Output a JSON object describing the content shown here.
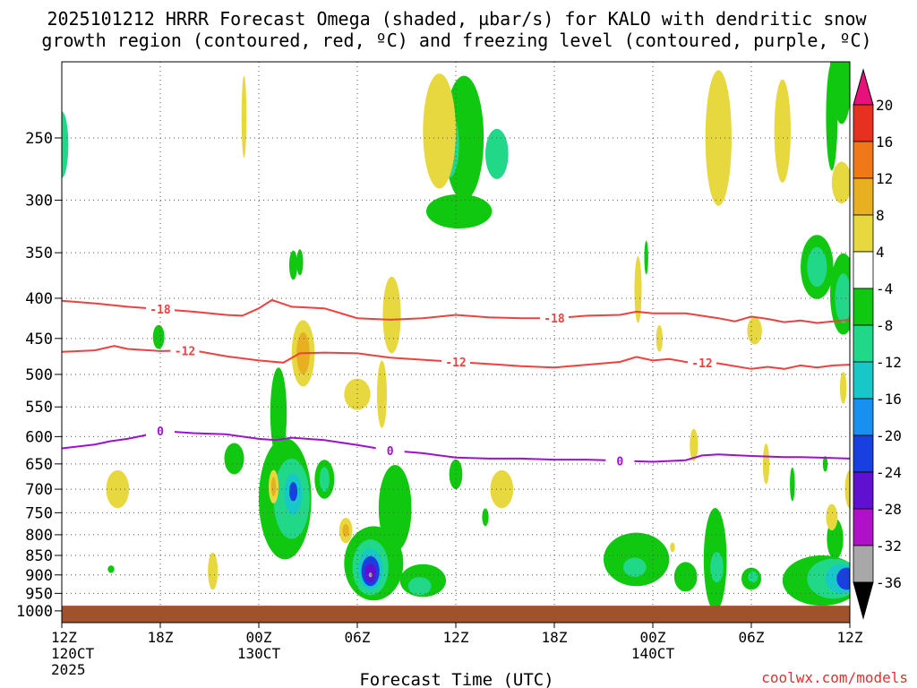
{
  "chart_data": {
    "type": "heatmap",
    "title_line1": "2025101212 HRRR Forecast Omega (shaded, µbar/s) for KALO with dendritic snow",
    "title_line2": "growth region (contoured, red, ºC) and freezing level (contoured, purple, ºC)",
    "xlabel": "Forecast Time (UTC)",
    "credit": "coolwx.com/models",
    "x_range_hours": [
      0,
      48
    ],
    "x_ticks": [
      {
        "hour": 0,
        "lines": [
          "12Z",
          "120CT",
          "2025"
        ]
      },
      {
        "hour": 6,
        "lines": [
          "18Z"
        ]
      },
      {
        "hour": 12,
        "lines": [
          "00Z",
          "130CT"
        ]
      },
      {
        "hour": 18,
        "lines": [
          "06Z"
        ]
      },
      {
        "hour": 24,
        "lines": [
          "12Z"
        ]
      },
      {
        "hour": 30,
        "lines": [
          "18Z"
        ]
      },
      {
        "hour": 36,
        "lines": [
          "00Z",
          "140CT"
        ]
      },
      {
        "hour": 42,
        "lines": [
          "06Z"
        ]
      },
      {
        "hour": 48,
        "lines": [
          "12Z"
        ]
      }
    ],
    "y_axis": "pressure (hPa), log scale",
    "y_range": [
      200,
      1035
    ],
    "y_ticks": [
      250,
      300,
      350,
      400,
      450,
      500,
      550,
      600,
      650,
      700,
      750,
      800,
      850,
      900,
      950,
      1000
    ],
    "colorbar": {
      "labels": [
        "20",
        "16",
        "12",
        "8",
        "4",
        "-4",
        "-8",
        "-12",
        "-16",
        "-20",
        "-24",
        "-28",
        "-32",
        "-36"
      ],
      "bins": [
        {
          "from": 20,
          "to": 24,
          "color": "#e8107a"
        },
        {
          "from": 16,
          "to": 20,
          "color": "#e83020"
        },
        {
          "from": 12,
          "to": 16,
          "color": "#f07818"
        },
        {
          "from": 8,
          "to": 12,
          "color": "#e8b020"
        },
        {
          "from": 4,
          "to": 8,
          "color": "#e8d840"
        },
        {
          "from": -4,
          "to": 4,
          "color": "#ffffff"
        },
        {
          "from": -8,
          "to": -4,
          "color": "#10c810"
        },
        {
          "from": -12,
          "to": -8,
          "color": "#20d888"
        },
        {
          "from": -16,
          "to": -12,
          "color": "#18c8c8"
        },
        {
          "from": -20,
          "to": -16,
          "color": "#1890f0"
        },
        {
          "from": -24,
          "to": -20,
          "color": "#1840e0"
        },
        {
          "from": -28,
          "to": -24,
          "color": "#6010d0"
        },
        {
          "from": -32,
          "to": -28,
          "color": "#b010c8"
        },
        {
          "from": -36,
          "to": -32,
          "color": "#a8a8a8"
        },
        {
          "from": -40,
          "to": -36,
          "color": "#000000"
        }
      ]
    },
    "contours": [
      {
        "label": "-18",
        "color": "#f04040",
        "label_hours": [
          6,
          30
        ],
        "points": [
          [
            0,
            403
          ],
          [
            2,
            406
          ],
          [
            4,
            410
          ],
          [
            6,
            413
          ],
          [
            8,
            416
          ],
          [
            10,
            420
          ],
          [
            11,
            421
          ],
          [
            12,
            412
          ],
          [
            12.8,
            402
          ],
          [
            14,
            410
          ],
          [
            16,
            412
          ],
          [
            18,
            424
          ],
          [
            20,
            426
          ],
          [
            22,
            424
          ],
          [
            24,
            420
          ],
          [
            26,
            423
          ],
          [
            28,
            424
          ],
          [
            30,
            424
          ],
          [
            32,
            421
          ],
          [
            34,
            420
          ],
          [
            35,
            416
          ],
          [
            36,
            418
          ],
          [
            38,
            418
          ],
          [
            40,
            424
          ],
          [
            41,
            428
          ],
          [
            42,
            422
          ],
          [
            43,
            425
          ],
          [
            44,
            429
          ],
          [
            45,
            427
          ],
          [
            46,
            430
          ],
          [
            47,
            428
          ],
          [
            48,
            426
          ]
        ]
      },
      {
        "label": "-12",
        "color": "#f04040",
        "label_hours": [
          7.5,
          24,
          39
        ],
        "points": [
          [
            0,
            468
          ],
          [
            2,
            466
          ],
          [
            3.2,
            460
          ],
          [
            4,
            464
          ],
          [
            6,
            467
          ],
          [
            8,
            466
          ],
          [
            10,
            474
          ],
          [
            12,
            480
          ],
          [
            13.5,
            483
          ],
          [
            14.5,
            470
          ],
          [
            16,
            469
          ],
          [
            18,
            470
          ],
          [
            20,
            476
          ],
          [
            22,
            479
          ],
          [
            24,
            482
          ],
          [
            26,
            485
          ],
          [
            28,
            488
          ],
          [
            30,
            490
          ],
          [
            32,
            486
          ],
          [
            34,
            482
          ],
          [
            35,
            475
          ],
          [
            36,
            480
          ],
          [
            37,
            478
          ],
          [
            38,
            482
          ],
          [
            40,
            484
          ],
          [
            42,
            492
          ],
          [
            43,
            489
          ],
          [
            44,
            492
          ],
          [
            45,
            487
          ],
          [
            46,
            490
          ],
          [
            47,
            487
          ],
          [
            48,
            486
          ]
        ]
      },
      {
        "label": "0",
        "color": "#a010d0",
        "label_hours": [
          6,
          20,
          34
        ],
        "points": [
          [
            0,
            621
          ],
          [
            2,
            614
          ],
          [
            3,
            608
          ],
          [
            4,
            604
          ],
          [
            5,
            598
          ],
          [
            6,
            590
          ],
          [
            8,
            594
          ],
          [
            10,
            596
          ],
          [
            12,
            604
          ],
          [
            13,
            606
          ],
          [
            14,
            602
          ],
          [
            16,
            606
          ],
          [
            18,
            615
          ],
          [
            20,
            625
          ],
          [
            22,
            630
          ],
          [
            24,
            638
          ],
          [
            26,
            640
          ],
          [
            28,
            640
          ],
          [
            30,
            642
          ],
          [
            32,
            642
          ],
          [
            34,
            644
          ],
          [
            36,
            646
          ],
          [
            38,
            643
          ],
          [
            39,
            634
          ],
          [
            40,
            632
          ],
          [
            42,
            635
          ],
          [
            44,
            637
          ],
          [
            45,
            637
          ],
          [
            46,
            638
          ],
          [
            48,
            640
          ]
        ]
      }
    ],
    "ground_top_hpa": 985,
    "ground_color": "#a0522d"
  }
}
